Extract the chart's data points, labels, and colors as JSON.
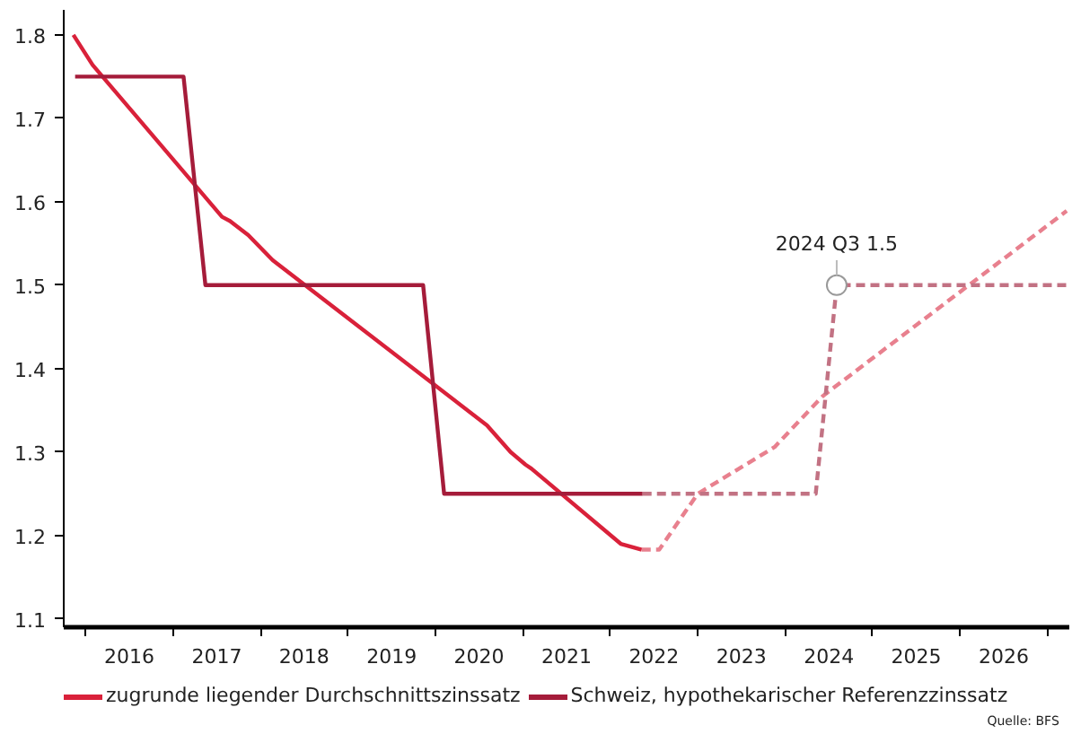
{
  "chart_data": {
    "type": "line",
    "xlim": [
      2015.75,
      2027.25
    ],
    "ylim": [
      1.09,
      1.83
    ],
    "xticks": [
      {
        "value": 2016,
        "label": null
      },
      {
        "value": 2016.5,
        "label": "2016"
      },
      {
        "value": 2017,
        "label": null
      },
      {
        "value": 2017.5,
        "label": "2017"
      },
      {
        "value": 2018,
        "label": null
      },
      {
        "value": 2018.5,
        "label": "2018"
      },
      {
        "value": 2019,
        "label": null
      },
      {
        "value": 2019.5,
        "label": "2019"
      },
      {
        "value": 2020,
        "label": null
      },
      {
        "value": 2020.5,
        "label": "2020"
      },
      {
        "value": 2021,
        "label": null
      },
      {
        "value": 2021.5,
        "label": "2021"
      },
      {
        "value": 2022,
        "label": null
      },
      {
        "value": 2022.5,
        "label": "2022"
      },
      {
        "value": 2023,
        "label": null
      },
      {
        "value": 2023.5,
        "label": "2023"
      },
      {
        "value": 2024,
        "label": null
      },
      {
        "value": 2024.5,
        "label": "2024"
      },
      {
        "value": 2025,
        "label": null
      },
      {
        "value": 2025.5,
        "label": "2025"
      },
      {
        "value": 2026,
        "label": null
      },
      {
        "value": 2026.5,
        "label": "2026"
      },
      {
        "value": 2027,
        "label": null
      }
    ],
    "yticks": [
      1.1,
      1.2,
      1.3,
      1.4,
      1.5,
      1.6,
      1.7,
      1.8
    ],
    "grid": false,
    "legend": "bottom left",
    "marker": "none",
    "series": [
      {
        "name": "zugrunde liegender Durchschnittszinssatz",
        "color": "#d9213a",
        "line_style": "solid",
        "x": [
          2015.86,
          2016.08,
          2017.56,
          2017.65,
          2017.86,
          2018.14,
          2020.59,
          2020.86,
          2021.03,
          2021.1,
          2022.12,
          2022.36
        ],
        "values": [
          1.8,
          1.764,
          1.582,
          1.577,
          1.56,
          1.53,
          1.332,
          1.3,
          1.285,
          1.28,
          1.19,
          1.183
        ]
      },
      {
        "name": "Schweiz, hypothekarischer Referenzzinssatz",
        "color": "#a51c3a",
        "line_style": "solid",
        "x": [
          2015.88,
          2017.12,
          2017.37,
          2019.86,
          2020.1,
          2022.37
        ],
        "values": [
          1.75,
          1.75,
          1.5,
          1.5,
          1.25,
          1.25
        ]
      },
      {
        "color": "#e8808e",
        "line_style": "dashed",
        "x": [
          2022.36,
          2022.56,
          2023.0,
          2023.88,
          2024.43,
          2027.22
        ],
        "values": [
          1.183,
          1.183,
          1.25,
          1.306,
          1.367,
          1.589
        ]
      },
      {
        "color": "#c27283",
        "line_style": "dashed",
        "x": [
          2022.37,
          2024.35,
          2024.59,
          2027.22
        ],
        "values": [
          1.25,
          1.25,
          1.5,
          1.5
        ]
      }
    ],
    "annotations": [
      {
        "text": "2024 Q3 1.5",
        "x": 2024.59,
        "y": 1.5
      },
      "Quelle: BFS"
    ]
  }
}
